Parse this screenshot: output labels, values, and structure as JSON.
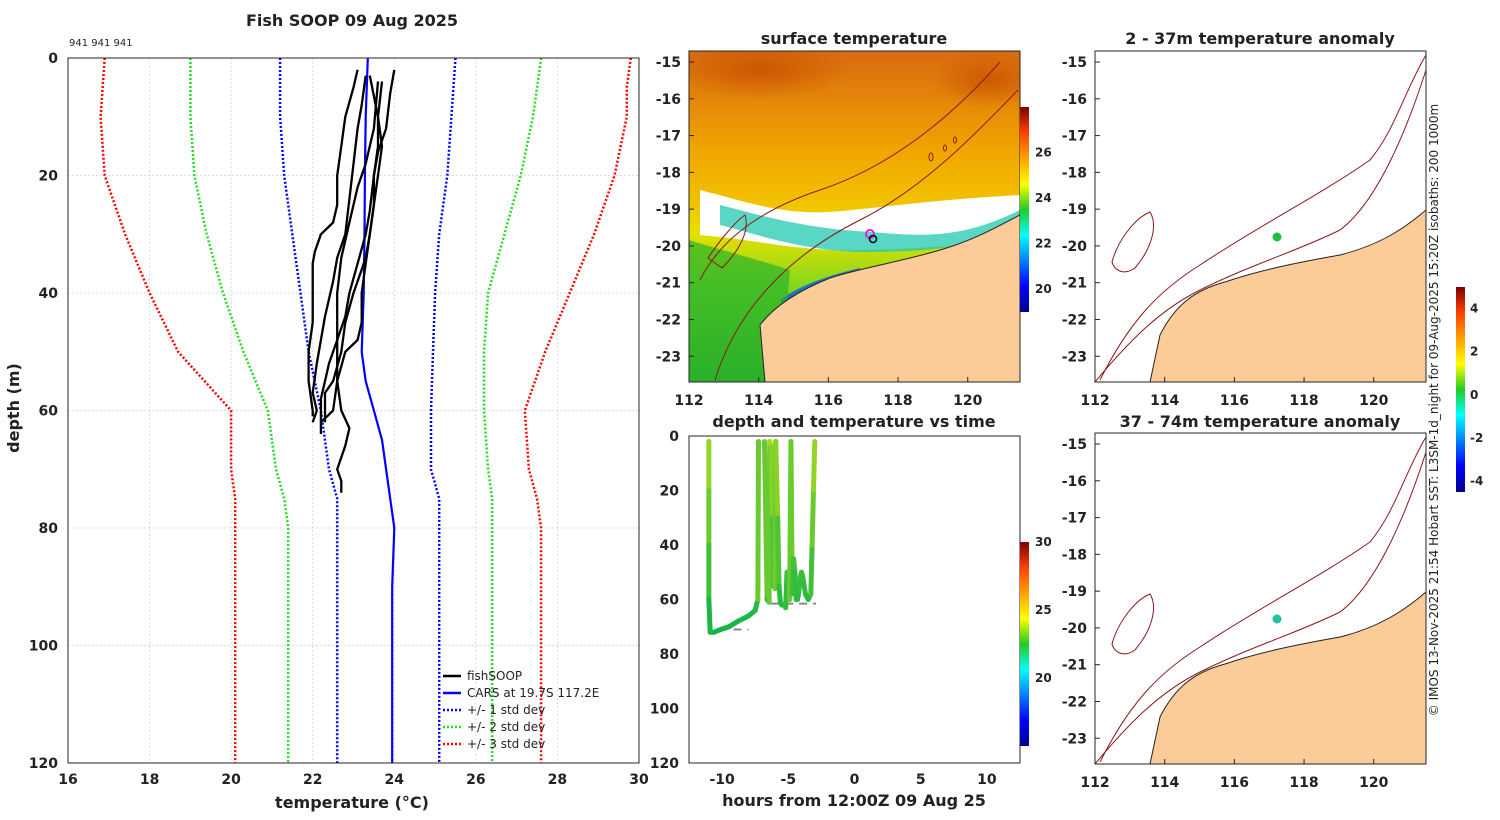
{
  "figure": {
    "side_caption": "© IMOS 13-Nov-2025 21:54 Hobart SST: L3SM-1d_night for 09-Aug-2025  15:20Z isobaths: 200  1000m",
    "colors": {
      "land": "#fbcb98",
      "coast": "#8b1a1a",
      "profile": "#000000",
      "cars": "#0000ff",
      "std1": "#0000ff",
      "std2": "#22dd22",
      "std3": "#ff0000"
    }
  },
  "chart_data": [
    {
      "id": "profiles",
      "type": "line",
      "title": "Fish SOOP 09 Aug 2025",
      "annotation": "941 941 941",
      "xlabel": "temperature (°C)",
      "ylabel": "depth (m)",
      "xlim": [
        16,
        30
      ],
      "ylim": [
        0,
        120
      ],
      "xticks": [
        "16",
        "18",
        "20",
        "22",
        "24",
        "26",
        "28",
        "30"
      ],
      "yticks": [
        "0",
        "20",
        "40",
        "60",
        "80",
        "100",
        "120"
      ],
      "grid": true,
      "legend_position": "bottom-right",
      "legend": [
        "fishSOOP",
        "CARS at 19.7S 117.2E",
        "+/- 1 std dev",
        "+/- 2 std dev",
        "+/- 3 std dev"
      ],
      "series": [
        {
          "name": "fishSOOP 1",
          "depth": [
            2,
            5,
            10,
            15,
            20,
            25,
            28,
            30,
            33,
            35,
            40,
            45,
            50,
            55,
            60,
            61
          ],
          "temp": [
            23.1,
            23.0,
            22.8,
            22.7,
            22.6,
            22.6,
            22.5,
            22.2,
            22.05,
            22.0,
            22.0,
            22.0,
            21.9,
            21.9,
            22.0,
            22.0
          ]
        },
        {
          "name": "fishSOOP 2",
          "depth": [
            3,
            8,
            12,
            18,
            24,
            30,
            34,
            38,
            44,
            48,
            52,
            57,
            60,
            62
          ],
          "temp": [
            23.3,
            23.2,
            23.1,
            23.0,
            22.9,
            22.8,
            22.6,
            22.5,
            22.3,
            22.2,
            22.1,
            22.0,
            22.1,
            22.0
          ]
        },
        {
          "name": "fishSOOP 3",
          "depth": [
            2,
            6,
            12,
            16,
            20,
            25,
            30,
            34,
            36,
            40,
            45,
            50,
            55,
            57,
            62
          ],
          "temp": [
            24.0,
            23.9,
            23.8,
            23.6,
            23.5,
            23.5,
            23.4,
            23.3,
            23.2,
            23.0,
            22.8,
            22.7,
            22.5,
            22.3,
            22.3
          ]
        },
        {
          "name": "fishSOOP 4",
          "depth": [
            4,
            10,
            15,
            20,
            26,
            30,
            35,
            40,
            44,
            48,
            52,
            55,
            58,
            60,
            63,
            64
          ],
          "temp": [
            23.7,
            23.6,
            23.6,
            23.5,
            23.4,
            23.3,
            23.1,
            22.9,
            22.8,
            22.6,
            22.4,
            22.3,
            22.2,
            22.2,
            22.2,
            22.2
          ]
        },
        {
          "name": "fishSOOP 5",
          "depth": [
            3,
            10,
            15,
            20,
            25,
            30,
            35,
            40,
            45,
            48,
            50,
            55,
            60,
            62
          ],
          "temp": [
            23.4,
            23.6,
            23.7,
            23.6,
            23.5,
            23.4,
            23.3,
            23.2,
            23.2,
            23.1,
            22.8,
            22.6,
            22.5,
            22.2
          ]
        },
        {
          "name": "fishSOOP 6",
          "depth": [
            4,
            12,
            18,
            22,
            28,
            34,
            40,
            45,
            50,
            55,
            60,
            63,
            66,
            70,
            72,
            74
          ],
          "temp": [
            23.6,
            23.5,
            23.3,
            23.1,
            22.9,
            22.7,
            22.6,
            22.6,
            22.6,
            22.6,
            22.7,
            22.9,
            22.8,
            22.6,
            22.7,
            22.7
          ]
        }
      ],
      "cars": {
        "name": "CARS at 19.7S 117.2E",
        "depth": [
          0,
          10,
          20,
          30,
          40,
          50,
          55,
          60,
          65,
          70,
          75,
          80,
          90,
          100,
          120
        ],
        "temp": [
          23.35,
          23.3,
          23.28,
          23.27,
          23.25,
          23.2,
          23.3,
          23.5,
          23.7,
          23.8,
          23.9,
          24.0,
          23.95,
          23.95,
          23.95
        ]
      },
      "std": [
        {
          "name": "+/- 1 std dev",
          "lower": {
            "depth": [
              0,
              10,
              20,
              30,
              40,
              50,
              60,
              70,
              75,
              80,
              100,
              120
            ],
            "temp": [
              21.2,
              21.2,
              21.3,
              21.5,
              21.7,
              21.9,
              22.2,
              22.4,
              22.6,
              22.6,
              22.6,
              22.6
            ]
          },
          "upper": {
            "depth": [
              0,
              10,
              20,
              30,
              40,
              50,
              60,
              70,
              75,
              80,
              100,
              120
            ],
            "temp": [
              25.5,
              25.4,
              25.3,
              25.1,
              25.0,
              24.95,
              24.9,
              24.9,
              25.1,
              25.1,
              25.1,
              25.1
            ]
          }
        },
        {
          "name": "+/- 2 std dev",
          "lower": {
            "depth": [
              0,
              10,
              20,
              30,
              40,
              50,
              60,
              70,
              75,
              80,
              100,
              120
            ],
            "temp": [
              19.0,
              19.0,
              19.1,
              19.4,
              19.8,
              20.3,
              20.9,
              21.1,
              21.3,
              21.4,
              21.4,
              21.4
            ]
          },
          "upper": {
            "depth": [
              0,
              10,
              20,
              30,
              40,
              50,
              60,
              70,
              75,
              80,
              100,
              120
            ],
            "temp": [
              27.6,
              27.4,
              27.1,
              26.7,
              26.3,
              26.2,
              26.2,
              26.3,
              26.4,
              26.4,
              26.4,
              26.4
            ]
          }
        },
        {
          "name": "+/- 3 std dev",
          "lower": {
            "depth": [
              0,
              10,
              20,
              30,
              40,
              50,
              60,
              70,
              75,
              80,
              100,
              120
            ],
            "temp": [
              16.9,
              16.8,
              16.9,
              17.4,
              18.0,
              18.7,
              20.0,
              20.0,
              20.1,
              20.1,
              20.1,
              20.1
            ]
          },
          "upper": {
            "depth": [
              0,
              5,
              10,
              20,
              30,
              40,
              50,
              60,
              70,
              75,
              80,
              100,
              120
            ],
            "temp": [
              29.8,
              29.7,
              29.7,
              29.4,
              28.9,
              28.3,
              27.7,
              27.2,
              27.3,
              27.5,
              27.6,
              27.6,
              27.6
            ]
          }
        }
      ]
    },
    {
      "id": "sst_map",
      "type": "heatmap",
      "title": "surface temperature",
      "xlim": [
        112,
        121.5
      ],
      "ylim": [
        -23.7,
        -14.7
      ],
      "xticks": [
        "112",
        "114",
        "116",
        "118",
        "120"
      ],
      "yticks": [
        "-15",
        "-16",
        "-17",
        "-18",
        "-19",
        "-20",
        "-21",
        "-22",
        "-23"
      ],
      "colorbar": {
        "ticks": [
          "20",
          "22",
          "24",
          "26"
        ],
        "range": [
          19,
          28
        ]
      }
    },
    {
      "id": "depth_time",
      "type": "scatter",
      "title": "depth and temperature vs time",
      "xlabel": "hours from 12:00Z 09 Aug 25",
      "xlim": [
        -12.5,
        12.5
      ],
      "ylim": [
        0,
        120
      ],
      "xticks": [
        "-10",
        "-5",
        "0",
        "5",
        "10"
      ],
      "yticks": [
        "0",
        "20",
        "40",
        "60",
        "80",
        "100",
        "120"
      ],
      "colorbar": {
        "ticks": [
          "20",
          "25",
          "30"
        ],
        "range": [
          15,
          30
        ]
      },
      "casts": [
        {
          "t": [
            -11,
            -11,
            -11,
            -11,
            -10.9,
            -10.6,
            -10.1,
            -9.5,
            -8.8,
            -8.0,
            -7.5,
            -7.3,
            -7.25
          ],
          "depth": [
            2,
            20,
            40,
            60,
            72,
            72,
            71,
            70,
            68,
            66,
            64,
            60,
            2
          ]
        },
        {
          "t": [
            -6.8,
            -6.6,
            -6.45,
            -6.4,
            -6.3,
            -6.2,
            -6.1,
            -6.0,
            -5.95,
            -5.8,
            -5.7,
            -5.6,
            -5.5,
            -5.3,
            -5.2,
            -5.1,
            -5.0,
            -4.9,
            -4.8,
            -4.7,
            -4.6,
            -4.5,
            -4.4,
            -4.3,
            -4.2,
            -4.1,
            -4.0,
            -3.9,
            -3.8,
            -3.7,
            -3.5,
            -3.3,
            -3.2,
            -3.1,
            -3.0
          ],
          "depth": [
            2,
            60,
            61,
            2,
            4,
            30,
            55,
            56,
            2,
            30,
            55,
            61,
            62,
            62,
            63,
            50,
            55,
            60,
            2,
            58,
            45,
            50,
            60,
            60,
            57,
            52,
            50,
            52,
            55,
            58,
            60,
            58,
            40,
            20,
            2
          ]
        }
      ],
      "bottom_segments": [
        {
          "t": [
            -10.2,
            -8.0
          ],
          "depth": 71
        },
        {
          "t": [
            -6.3,
            -2.9
          ],
          "depth": 61.5
        }
      ]
    },
    {
      "id": "anomaly_2_37",
      "type": "heatmap",
      "title": "2 - 37m temperature anomaly",
      "xlim": [
        112,
        121.5
      ],
      "ylim": [
        -23.7,
        -14.7
      ],
      "xticks": [
        "112",
        "114",
        "116",
        "118",
        "120"
      ],
      "yticks": [
        "-15",
        "-16",
        "-17",
        "-18",
        "-19",
        "-20",
        "-21",
        "-22",
        "-23"
      ],
      "point": {
        "lon": 117.25,
        "lat": -19.75,
        "anomaly": -0.3
      }
    },
    {
      "id": "anomaly_37_74",
      "type": "heatmap",
      "title": "37 - 74m temperature anomaly",
      "xlim": [
        112,
        121.5
      ],
      "ylim": [
        -23.7,
        -14.7
      ],
      "xticks": [
        "112",
        "114",
        "116",
        "118",
        "120"
      ],
      "yticks": [
        "-15",
        "-16",
        "-17",
        "-18",
        "-19",
        "-20",
        "-21",
        "-22",
        "-23"
      ],
      "point": {
        "lon": 117.25,
        "lat": -19.75,
        "anomaly": -1.2
      },
      "colorbar": {
        "ticks": [
          "4",
          "2",
          "0",
          "-2",
          "-4"
        ],
        "range": [
          -4.5,
          5
        ]
      }
    }
  ]
}
